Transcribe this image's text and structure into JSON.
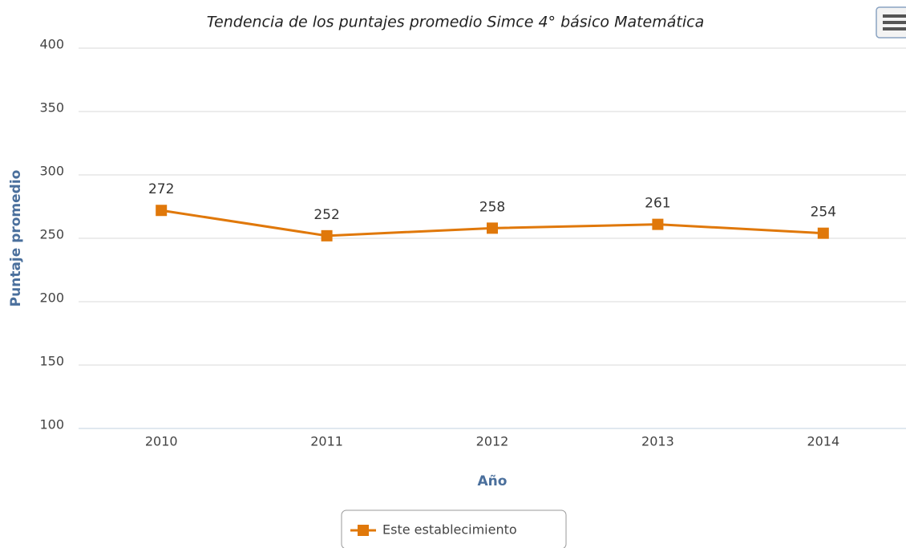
{
  "chart_data": {
    "type": "line",
    "title": "Tendencia de los puntajes promedio Simce 4° básico Matemática",
    "x_label": "Año",
    "y_label": "Puntaje promedio",
    "categories": [
      "2010",
      "2011",
      "2012",
      "2013",
      "2014"
    ],
    "series": [
      {
        "name": "Este establecimiento",
        "color": "#e0780a",
        "values": [
          272,
          252,
          258,
          261,
          254
        ]
      }
    ],
    "ylim": [
      100,
      400
    ],
    "yticks": [
      100,
      150,
      200,
      250,
      300,
      350,
      400
    ],
    "grid": true,
    "legend": "bottom"
  }
}
